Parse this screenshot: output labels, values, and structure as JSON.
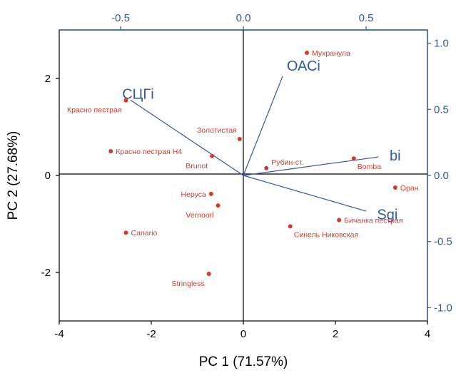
{
  "colors": {
    "points": "#d23b2c",
    "loadings": "#2f59a5",
    "secondary_axes": "#2f59a5",
    "primary_axes": "#000000"
  },
  "chart_data": {
    "type": "scatter",
    "subtype": "biplot",
    "title": "",
    "xlabel": "PC 1 (71.57%)",
    "ylabel": "PC 2 (27.68%)",
    "xlim": [
      -4,
      4
    ],
    "ylim": [
      -3,
      3
    ],
    "xticks": [
      -4,
      -2,
      0,
      2,
      4
    ],
    "yticks": [
      -2,
      0,
      2
    ],
    "x2lim": [
      -0.75,
      0.75
    ],
    "y2lim": [
      -1.1,
      1.1
    ],
    "x2ticks": [
      "-0.5",
      "0.0",
      "0.5"
    ],
    "y2ticks": [
      "-1.0",
      "-0.5",
      "0.0",
      "0.5",
      "1.0"
    ],
    "x2tick_values": [
      -0.5,
      0.0,
      0.5
    ],
    "y2tick_values": [
      -1.0,
      -0.5,
      0.0,
      0.5,
      1.0
    ],
    "grid": false,
    "points": [
      {
        "label": "Мухранула",
        "x": 1.38,
        "y": 2.53,
        "anchor": "right"
      },
      {
        "label": "Красно пестрая",
        "x": -2.55,
        "y": 1.55,
        "anchor": "below-left"
      },
      {
        "label": "Золотистая",
        "x": -0.08,
        "y": 0.75,
        "anchor": "above-left"
      },
      {
        "label": "Красно пестрая Н4",
        "x": -2.88,
        "y": 0.5,
        "anchor": "right"
      },
      {
        "label": "Brunot",
        "x": -0.68,
        "y": 0.4,
        "anchor": "below-left"
      },
      {
        "label": "Рубин-ст.",
        "x": 0.5,
        "y": 0.15,
        "anchor": "above-right"
      },
      {
        "label": "Bomba",
        "x": 2.4,
        "y": 0.35,
        "anchor": "below-right"
      },
      {
        "label": "Оран",
        "x": 3.3,
        "y": -0.25,
        "anchor": "right"
      },
      {
        "label": "Неруса",
        "x": -0.7,
        "y": -0.38,
        "anchor": "left"
      },
      {
        "label": "Vernoorl",
        "x": -0.55,
        "y": -0.62,
        "anchor": "below-left"
      },
      {
        "label": "Бичанка пестрая",
        "x": 2.08,
        "y": -0.92,
        "anchor": "right"
      },
      {
        "label": "Синель Никовская",
        "x": 1.02,
        "y": -1.05,
        "anchor": "below-right"
      },
      {
        "label": "Canario",
        "x": -2.55,
        "y": -1.18,
        "anchor": "right"
      },
      {
        "label": "Stringless",
        "x": -0.75,
        "y": -2.03,
        "anchor": "below-left"
      }
    ],
    "loadings": [
      {
        "label": "СЦГі",
        "x": -0.46,
        "y": 0.57
      },
      {
        "label": "ОАСі",
        "x": 0.16,
        "y": 0.75
      },
      {
        "label": "bi",
        "x": 0.55,
        "y": 0.14
      },
      {
        "label": "Sgi",
        "x": 0.5,
        "y": -0.27
      }
    ]
  }
}
